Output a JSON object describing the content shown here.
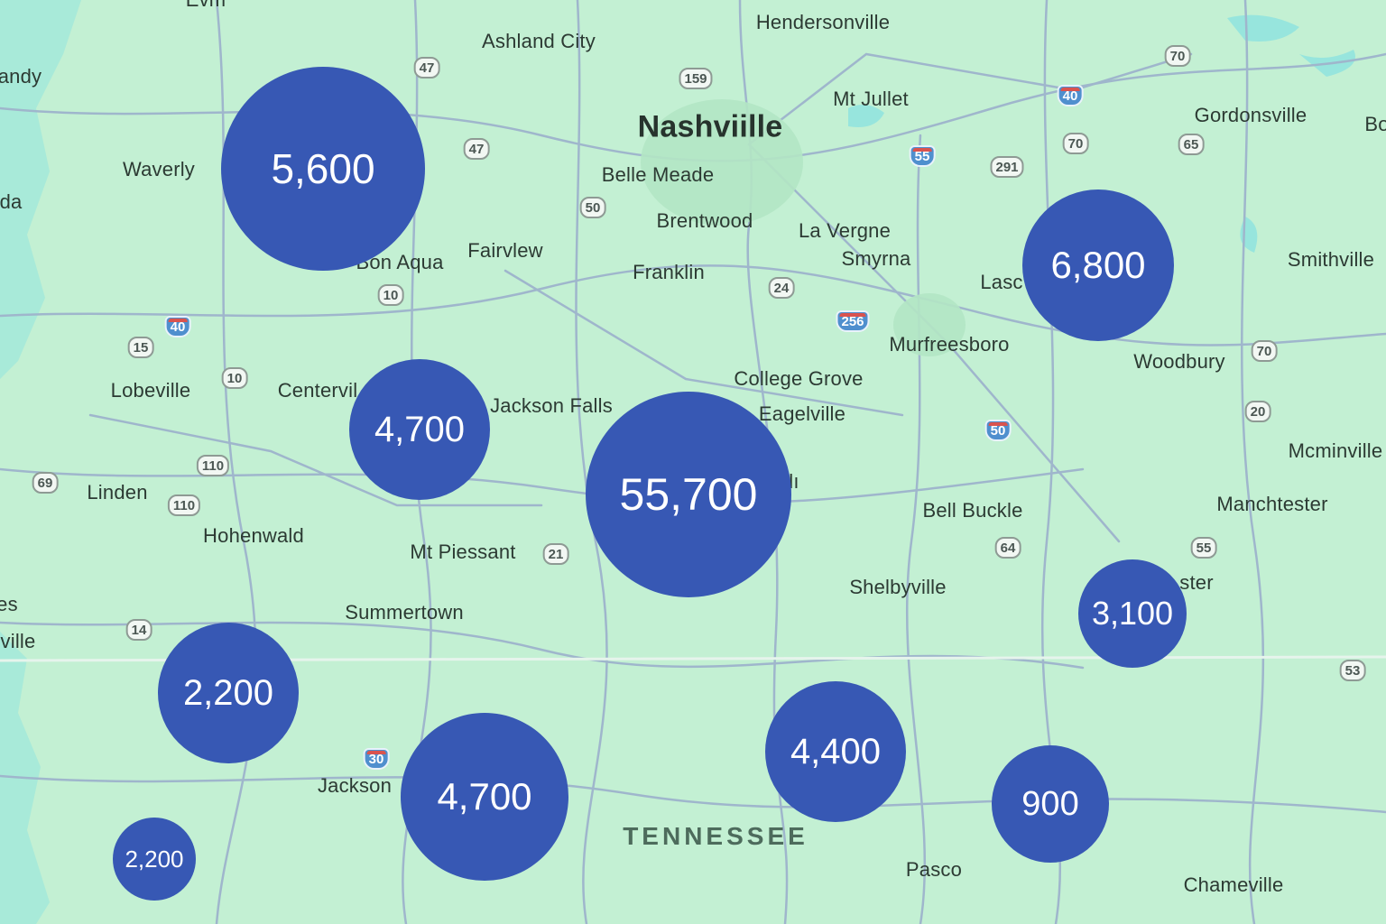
{
  "map": {
    "colors": {
      "land": "#c3f0d3",
      "water": "#8fe3e0",
      "road": "#9fb6cc",
      "cluster": "#3758b4",
      "cluster_text": "#ffffff"
    },
    "state_label": "TENNESSEE",
    "places": [
      {
        "name": "Nashviille",
        "kind": "city"
      },
      {
        "name": "Hendersonville",
        "kind": "town"
      },
      {
        "name": "Ashland City",
        "kind": "town"
      },
      {
        "name": "Mt Jullet",
        "kind": "town"
      },
      {
        "name": "Belle Meade",
        "kind": "town"
      },
      {
        "name": "Brentwood",
        "kind": "town"
      },
      {
        "name": "La Vergne",
        "kind": "town"
      },
      {
        "name": "Smyrna",
        "kind": "town"
      },
      {
        "name": "Franklin",
        "kind": "town"
      },
      {
        "name": "Fairvlew",
        "kind": "town"
      },
      {
        "name": "Bon Aqua",
        "kind": "town"
      },
      {
        "name": "Waverly",
        "kind": "town"
      },
      {
        "name": "andy",
        "kind": "town"
      },
      {
        "name": "da",
        "kind": "town"
      },
      {
        "name": "Evm",
        "kind": "town"
      },
      {
        "name": "Gordonsville",
        "kind": "town"
      },
      {
        "name": "Bo",
        "kind": "town"
      },
      {
        "name": "Smithville",
        "kind": "town"
      },
      {
        "name": "Lasc",
        "kind": "town"
      },
      {
        "name": "Murfreesboro",
        "kind": "town"
      },
      {
        "name": "Woodbury",
        "kind": "town"
      },
      {
        "name": "College Grove",
        "kind": "town"
      },
      {
        "name": "Eagelville",
        "kind": "town"
      },
      {
        "name": "Lobeville",
        "kind": "town"
      },
      {
        "name": "Centervil",
        "kind": "town"
      },
      {
        "name": "Jackson Falls",
        "kind": "town"
      },
      {
        "name": "Mcminville",
        "kind": "town"
      },
      {
        "name": "Linden",
        "kind": "town"
      },
      {
        "name": "Hohenwald",
        "kind": "town"
      },
      {
        "name": "Mt Piessant",
        "kind": "town"
      },
      {
        "name": "Bell Buckle",
        "kind": "town"
      },
      {
        "name": "Manchtester",
        "kind": "town"
      },
      {
        "name": "Shelbyville",
        "kind": "town"
      },
      {
        "name": "ster",
        "kind": "town"
      },
      {
        "name": "Summertown",
        "kind": "town"
      },
      {
        "name": "es",
        "kind": "town"
      },
      {
        "name": "ville",
        "kind": "town"
      },
      {
        "name": "Jackson",
        "kind": "town"
      },
      {
        "name": "Pasco",
        "kind": "town"
      },
      {
        "name": "Chameville",
        "kind": "town"
      },
      {
        "name": "lı",
        "kind": "town"
      }
    ],
    "shields": [
      {
        "label": "47",
        "type": "state"
      },
      {
        "label": "159",
        "type": "state"
      },
      {
        "label": "47",
        "type": "state"
      },
      {
        "label": "50",
        "type": "state"
      },
      {
        "label": "10",
        "type": "state"
      },
      {
        "label": "40",
        "type": "interstate"
      },
      {
        "label": "15",
        "type": "state"
      },
      {
        "label": "10",
        "type": "state"
      },
      {
        "label": "110",
        "type": "state"
      },
      {
        "label": "110",
        "type": "state"
      },
      {
        "label": "69",
        "type": "state"
      },
      {
        "label": "21",
        "type": "state"
      },
      {
        "label": "14",
        "type": "state"
      },
      {
        "label": "30",
        "type": "interstate"
      },
      {
        "label": "24",
        "type": "state"
      },
      {
        "label": "256",
        "type": "interstate"
      },
      {
        "label": "55",
        "type": "interstate"
      },
      {
        "label": "291",
        "type": "state"
      },
      {
        "label": "40",
        "type": "interstate"
      },
      {
        "label": "70",
        "type": "state"
      },
      {
        "label": "70",
        "type": "state"
      },
      {
        "label": "65",
        "type": "state"
      },
      {
        "label": "70",
        "type": "state"
      },
      {
        "label": "20",
        "type": "state"
      },
      {
        "label": "50",
        "type": "interstate"
      },
      {
        "label": "64",
        "type": "state"
      },
      {
        "label": "55",
        "type": "state"
      },
      {
        "label": "53",
        "type": "state"
      }
    ],
    "clusters": [
      {
        "count": "5,600",
        "value": 5600
      },
      {
        "count": "6,800",
        "value": 6800
      },
      {
        "count": "4,700",
        "value": 4700
      },
      {
        "count": "55,700",
        "value": 55700
      },
      {
        "count": "3,100",
        "value": 3100
      },
      {
        "count": "2,200",
        "value": 2200
      },
      {
        "count": "4,700",
        "value": 4700
      },
      {
        "count": "4,400",
        "value": 4400
      },
      {
        "count": "900",
        "value": 900
      },
      {
        "count": "2,200",
        "value": 2200
      }
    ]
  }
}
